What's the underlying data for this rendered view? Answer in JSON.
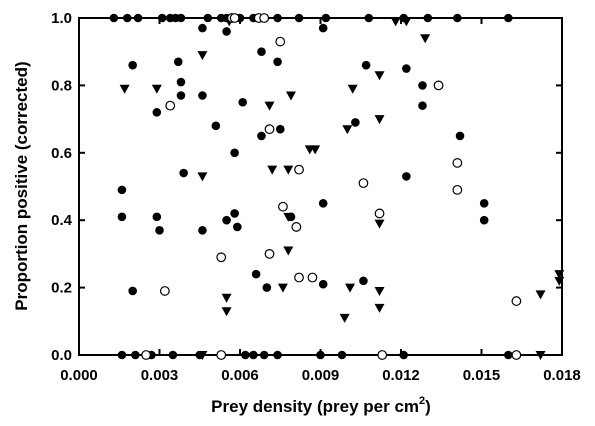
{
  "chart_data": {
    "type": "scatter",
    "xlabel": "Prey density (prey per cm",
    "xlabel_sup": "2",
    "xlabel_close": ")",
    "ylabel": "Proportion positive (corrected)",
    "xlim": [
      0.0,
      0.018
    ],
    "ylim": [
      0.0,
      1.0
    ],
    "x_ticks": [
      "0.000",
      "0.003",
      "0.006",
      "0.009",
      "0.012",
      "0.015",
      "0.018"
    ],
    "y_ticks": [
      "0.0",
      "0.2",
      "0.4",
      "0.6",
      "0.8",
      "1.0"
    ],
    "grid": false,
    "colors": {
      "filled": "#000000",
      "open_fill": "#ffffff",
      "axis": "#000000"
    },
    "series": [
      {
        "marker": "filled-circle",
        "points": [
          [
            0.0013,
            1.0
          ],
          [
            0.0018,
            1.0
          ],
          [
            0.0022,
            1.0
          ],
          [
            0.0031,
            1.0
          ],
          [
            0.0034,
            1.0
          ],
          [
            0.0036,
            1.0
          ],
          [
            0.0038,
            1.0
          ],
          [
            0.0048,
            1.0
          ],
          [
            0.0053,
            1.0
          ],
          [
            0.0055,
            1.0
          ],
          [
            0.006,
            1.0
          ],
          [
            0.0065,
            1.0
          ],
          [
            0.0074,
            1.0
          ],
          [
            0.0082,
            1.0
          ],
          [
            0.0092,
            1.0
          ],
          [
            0.0108,
            1.0
          ],
          [
            0.0121,
            1.0
          ],
          [
            0.013,
            1.0
          ],
          [
            0.0141,
            1.0
          ],
          [
            0.016,
            1.0
          ],
          [
            0.0016,
            0.0
          ],
          [
            0.0021,
            0.0
          ],
          [
            0.0027,
            0.0
          ],
          [
            0.0035,
            0.0
          ],
          [
            0.0045,
            0.0
          ],
          [
            0.0062,
            0.0
          ],
          [
            0.0065,
            0.0
          ],
          [
            0.0069,
            0.0
          ],
          [
            0.0074,
            0.0
          ],
          [
            0.009,
            0.0
          ],
          [
            0.0098,
            0.0
          ],
          [
            0.0121,
            0.0
          ],
          [
            0.016,
            0.0
          ],
          [
            0.002,
            0.86
          ],
          [
            0.0029,
            0.72
          ],
          [
            0.0037,
            0.87
          ],
          [
            0.0038,
            0.81
          ],
          [
            0.0038,
            0.77
          ],
          [
            0.0046,
            0.77
          ],
          [
            0.0046,
            0.97
          ],
          [
            0.0055,
            0.96
          ],
          [
            0.0061,
            0.75
          ],
          [
            0.0068,
            0.9
          ],
          [
            0.0074,
            0.87
          ],
          [
            0.0091,
            0.97
          ],
          [
            0.0107,
            0.86
          ],
          [
            0.0122,
            0.85
          ],
          [
            0.0128,
            0.8
          ],
          [
            0.0128,
            0.74
          ],
          [
            0.0142,
            0.65
          ],
          [
            0.0039,
            0.54
          ],
          [
            0.0051,
            0.68
          ],
          [
            0.0058,
            0.6
          ],
          [
            0.0068,
            0.65
          ],
          [
            0.0075,
            0.67
          ],
          [
            0.0103,
            0.69
          ],
          [
            0.0122,
            0.53
          ],
          [
            0.0016,
            0.49
          ],
          [
            0.0016,
            0.41
          ],
          [
            0.0029,
            0.41
          ],
          [
            0.003,
            0.37
          ],
          [
            0.0046,
            0.37
          ],
          [
            0.0055,
            0.4
          ],
          [
            0.0058,
            0.42
          ],
          [
            0.0059,
            0.38
          ],
          [
            0.0079,
            0.41
          ],
          [
            0.0091,
            0.45
          ],
          [
            0.0151,
            0.45
          ],
          [
            0.0151,
            0.4
          ],
          [
            0.002,
            0.19
          ],
          [
            0.0066,
            0.24
          ],
          [
            0.007,
            0.2
          ],
          [
            0.0091,
            0.21
          ],
          [
            0.0106,
            0.22
          ]
        ]
      },
      {
        "marker": "filled-triangle",
        "points": [
          [
            0.0017,
            0.79
          ],
          [
            0.0029,
            0.79
          ],
          [
            0.0046,
            0.89
          ],
          [
            0.0056,
            0.99
          ],
          [
            0.0071,
            0.74
          ],
          [
            0.0079,
            0.77
          ],
          [
            0.0086,
            0.61
          ],
          [
            0.0088,
            0.61
          ],
          [
            0.01,
            0.67
          ],
          [
            0.0102,
            0.79
          ],
          [
            0.0112,
            0.83
          ],
          [
            0.0129,
            0.94
          ],
          [
            0.0046,
            0.53
          ],
          [
            0.0072,
            0.55
          ],
          [
            0.0078,
            0.55
          ],
          [
            0.0112,
            0.7
          ],
          [
            0.0078,
            0.41
          ],
          [
            0.0078,
            0.31
          ],
          [
            0.0112,
            0.39
          ],
          [
            0.0055,
            0.17
          ],
          [
            0.0055,
            0.13
          ],
          [
            0.0076,
            0.2
          ],
          [
            0.0099,
            0.11
          ],
          [
            0.0101,
            0.2
          ],
          [
            0.0112,
            0.14
          ],
          [
            0.0112,
            0.19
          ],
          [
            0.0118,
            0.99
          ],
          [
            0.0122,
            0.99
          ],
          [
            0.0046,
            0.0
          ],
          [
            0.0172,
            0.18
          ],
          [
            0.0179,
            0.24
          ],
          [
            0.0179,
            0.22
          ],
          [
            0.0172,
            0.0
          ]
        ]
      },
      {
        "marker": "open-circle",
        "points": [
          [
            0.0057,
            1.0
          ],
          [
            0.0058,
            1.0
          ],
          [
            0.0067,
            1.0
          ],
          [
            0.0069,
            1.0
          ],
          [
            0.0034,
            0.74
          ],
          [
            0.0075,
            0.93
          ],
          [
            0.0071,
            0.67
          ],
          [
            0.0134,
            0.8
          ],
          [
            0.0141,
            0.57
          ],
          [
            0.0082,
            0.55
          ],
          [
            0.0106,
            0.51
          ],
          [
            0.0141,
            0.49
          ],
          [
            0.0076,
            0.44
          ],
          [
            0.0081,
            0.38
          ],
          [
            0.0112,
            0.42
          ],
          [
            0.0032,
            0.19
          ],
          [
            0.0053,
            0.29
          ],
          [
            0.0071,
            0.3
          ],
          [
            0.0082,
            0.23
          ],
          [
            0.0087,
            0.23
          ],
          [
            0.0163,
            0.16
          ],
          [
            0.0025,
            0.0
          ],
          [
            0.0053,
            0.0
          ],
          [
            0.0113,
            0.0
          ],
          [
            0.0163,
            0.0
          ]
        ]
      }
    ]
  }
}
